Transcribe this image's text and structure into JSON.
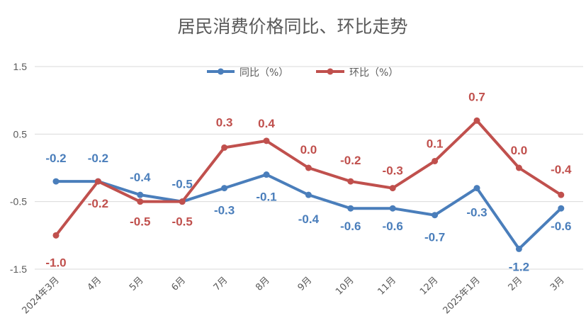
{
  "chart_data": {
    "type": "line",
    "title": "居民消费价格同比、环比走势",
    "xlabel": "",
    "ylabel": "",
    "categories": [
      "2024年3月",
      "4月",
      "5月",
      "6月",
      "7月",
      "8月",
      "9月",
      "10月",
      "11月",
      "12月",
      "2025年1月",
      "2月",
      "3月"
    ],
    "ylim": [
      -1.5,
      1.5
    ],
    "yticks": [
      1.5,
      0.5,
      -0.5,
      -1.5
    ],
    "ytick_labels": [
      "1.5",
      "0.5",
      "-0.5",
      "-1.5"
    ],
    "grid": true,
    "legend_position": "top-center",
    "series": [
      {
        "name": "同比（%）",
        "color": "#4a7ebb",
        "values": [
          -0.2,
          -0.2,
          -0.4,
          -0.5,
          -0.3,
          -0.1,
          -0.4,
          -0.6,
          -0.6,
          -0.7,
          -0.3,
          -1.2,
          -0.6
        ],
        "labels": [
          "-0.2",
          "-0.2",
          "-0.4",
          "-0.5",
          "-0.3",
          "-0.1",
          "-0.4",
          "-0.6",
          "-0.6",
          "-0.7",
          "-0.3",
          "-1.2",
          "-0.6"
        ]
      },
      {
        "name": "环比（%）",
        "color": "#c0504d",
        "values": [
          -1.0,
          -0.2,
          -0.5,
          -0.5,
          0.3,
          0.4,
          0.0,
          -0.2,
          -0.3,
          0.1,
          0.7,
          0.0,
          -0.4
        ],
        "labels": [
          "-1.0",
          "-0.2",
          "-0.5",
          "-0.5",
          "0.3",
          "0.4",
          "0.0",
          "-0.2",
          "-0.3",
          "0.1",
          "0.7",
          "0.0",
          "-0.4"
        ]
      }
    ]
  }
}
